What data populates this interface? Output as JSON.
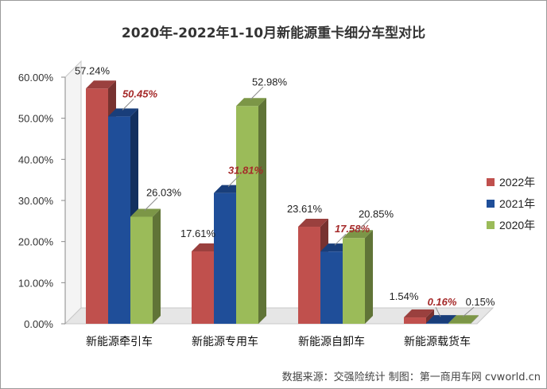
{
  "chart_data": {
    "type": "bar",
    "title": "2020年-2022年1-10月新能源重卡细分车型对比",
    "categories": [
      "新能源牵引车",
      "新能源专用车",
      "新能源自卸车",
      "新能源载货车"
    ],
    "series": [
      {
        "name": "2022年",
        "values": [
          57.24,
          17.61,
          23.61,
          1.54
        ],
        "labels": [
          "57.24%",
          "17.61%",
          "23.61%",
          "1.54%"
        ],
        "color": "#c0504d"
      },
      {
        "name": "2021年",
        "values": [
          50.45,
          31.81,
          17.58,
          0.16
        ],
        "labels": [
          "50.45%",
          "31.81%",
          "17.58%",
          "0.16%"
        ],
        "color": "#1f4e99"
      },
      {
        "name": "2020年",
        "values": [
          26.03,
          52.98,
          20.85,
          0.15
        ],
        "labels": [
          "26.03%",
          "52.98%",
          "20.85%",
          "0.15%"
        ],
        "color": "#9bbb59"
      }
    ],
    "yticks": [
      "0.00%",
      "10.00%",
      "20.00%",
      "30.00%",
      "40.00%",
      "50.00%",
      "60.00%"
    ],
    "ylim": [
      0,
      60
    ],
    "legend": "right",
    "grid": false,
    "bar_style": "3d"
  },
  "source_note": "数据来源：交强险统计  制图：第一商用车网 cvworld.cn"
}
